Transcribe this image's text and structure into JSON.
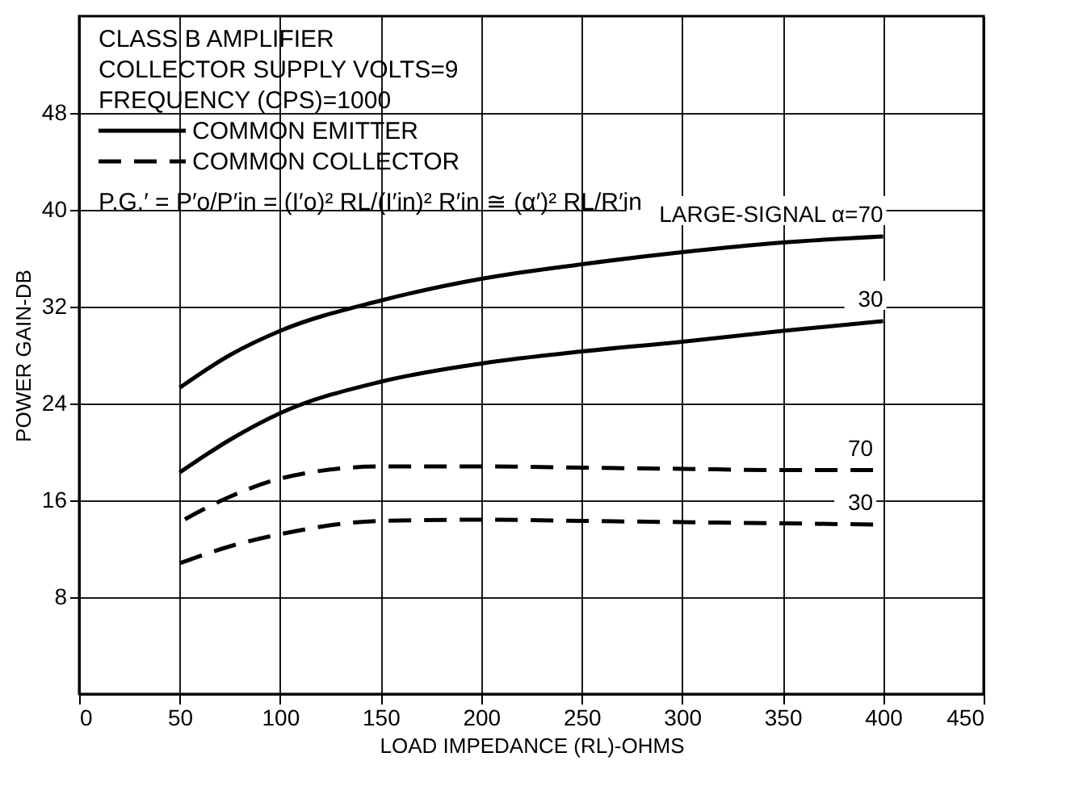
{
  "chart_data": {
    "type": "line",
    "xlabel": "LOAD IMPEDANCE (RL)-OHMS",
    "ylabel": "POWER GAIN-DB",
    "annotations": [
      "CLASS B AMPLIFIER",
      "COLLECTOR SUPPLY VOLTS=9",
      "FREQUENCY (CPS)=1000",
      "COMMON EMITTER",
      "COMMON COLLECTOR",
      "P.G.′ = P′o/P′in = (I′o)² RL/(I′in)² R′in ≅ (α′)² RL/R′in"
    ],
    "xlim": [
      0,
      450
    ],
    "xticks": [
      0,
      50,
      100,
      150,
      200,
      250,
      300,
      350,
      400,
      450
    ],
    "ylim": [
      0,
      56
    ],
    "yticks": [
      8,
      16,
      24,
      32,
      40,
      48
    ],
    "grid": true,
    "series": [
      {
        "name": "LARGE-SIGNAL α=70",
        "color": "#000000",
        "line_style": "solid",
        "x": [
          50,
          75,
          100,
          150,
          200,
          250,
          300,
          350,
          400
        ],
        "values": [
          25.3,
          28.0,
          30.0,
          32.5,
          34.3,
          35.5,
          36.5,
          37.3,
          37.8
        ]
      },
      {
        "name": "30",
        "color": "#000000",
        "line_style": "solid",
        "x": [
          50,
          75,
          100,
          150,
          200,
          250,
          300,
          350,
          400
        ],
        "values": [
          18.3,
          21.0,
          23.2,
          25.8,
          27.3,
          28.3,
          29.1,
          30.0,
          30.8
        ]
      },
      {
        "name": "70",
        "color": "#000000",
        "line_style": "dashed",
        "x": [
          50,
          75,
          100,
          150,
          200,
          250,
          300,
          350,
          395
        ],
        "values": [
          14.2,
          16.3,
          17.8,
          18.8,
          18.8,
          18.7,
          18.6,
          18.5,
          18.5
        ]
      },
      {
        "name": "30",
        "color": "#000000",
        "line_style": "dashed",
        "x": [
          50,
          75,
          100,
          150,
          200,
          250,
          300,
          350,
          395
        ],
        "values": [
          10.8,
          12.2,
          13.2,
          14.3,
          14.4,
          14.3,
          14.2,
          14.1,
          14.0
        ]
      }
    ]
  }
}
